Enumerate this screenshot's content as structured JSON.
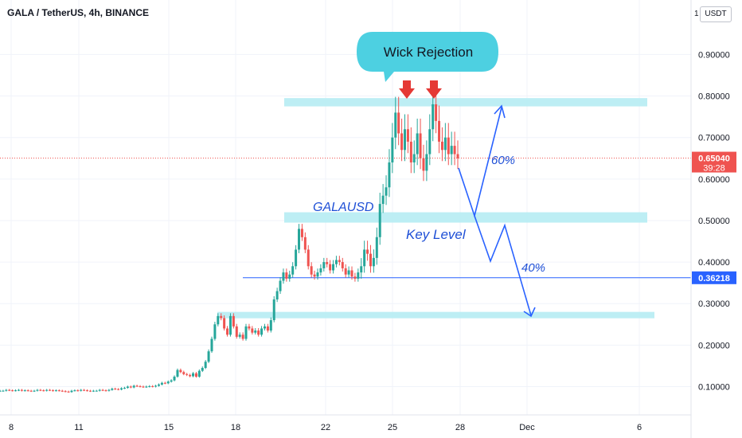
{
  "header": {
    "title": "GALA / TetherUS, 4h, BINANCE",
    "unit_label": "USDT",
    "unit_prefix": "1"
  },
  "price_axis": {
    "ticks": [
      "0.90000",
      "0.80000",
      "0.70000",
      "0.60000",
      "0.50000",
      "0.40000",
      "0.30000",
      "0.20000",
      "0.10000"
    ],
    "current_price": "0.65040",
    "countdown": "39:28",
    "level_price": "0.36218"
  },
  "time_axis": {
    "ticks": [
      "8",
      "11",
      "15",
      "18",
      "22",
      "25",
      "28",
      "Dec",
      "6"
    ]
  },
  "annotations": {
    "callout": "Wick Rejection",
    "symbol_label": "GALAUSD",
    "key_level": "Key Level",
    "up_pct": "60%",
    "down_pct": "40%"
  },
  "colors": {
    "up": "#26a69a",
    "down": "#ef5350",
    "zone": "#b2ebf2",
    "callout": "#4dd0e1",
    "drawing": "#2962ff",
    "arrow_red": "#e53935"
  },
  "chart_data": {
    "type": "candlestick",
    "title": "GALA / TetherUS, 4h, BINANCE",
    "y_unit": "USDT",
    "ylim": [
      0.0,
      0.95
    ],
    "x_ticks": [
      "8",
      "11",
      "15",
      "18",
      "22",
      "25",
      "28",
      "Dec",
      "6"
    ],
    "current_price": 0.6504,
    "zones": [
      {
        "low": 0.775,
        "high": 0.795
      },
      {
        "low": 0.495,
        "high": 0.52
      },
      {
        "low": 0.268,
        "high": 0.28
      }
    ],
    "horizontal_line": 0.36218,
    "close_series": [
      0.09,
      0.09,
      0.092,
      0.091,
      0.09,
      0.091,
      0.092,
      0.09,
      0.091,
      0.09,
      0.089,
      0.09,
      0.092,
      0.091,
      0.09,
      0.092,
      0.091,
      0.09,
      0.091,
      0.09,
      0.089,
      0.088,
      0.087,
      0.09,
      0.091,
      0.09,
      0.092,
      0.091,
      0.09,
      0.089,
      0.09,
      0.09,
      0.092,
      0.091,
      0.09,
      0.092,
      0.095,
      0.094,
      0.093,
      0.096,
      0.097,
      0.1,
      0.098,
      0.102,
      0.101,
      0.1,
      0.099,
      0.1,
      0.101,
      0.1,
      0.102,
      0.105,
      0.109,
      0.108,
      0.112,
      0.115,
      0.124,
      0.14,
      0.135,
      0.13,
      0.128,
      0.125,
      0.132,
      0.124,
      0.138,
      0.145,
      0.16,
      0.185,
      0.215,
      0.25,
      0.27,
      0.265,
      0.24,
      0.225,
      0.27,
      0.245,
      0.22,
      0.225,
      0.215,
      0.245,
      0.24,
      0.23,
      0.235,
      0.225,
      0.24,
      0.245,
      0.235,
      0.26,
      0.31,
      0.33,
      0.355,
      0.375,
      0.36,
      0.37,
      0.39,
      0.43,
      0.48,
      0.46,
      0.43,
      0.39,
      0.37,
      0.365,
      0.375,
      0.385,
      0.4,
      0.395,
      0.38,
      0.395,
      0.405,
      0.4,
      0.385,
      0.37,
      0.38,
      0.365,
      0.36,
      0.375,
      0.39,
      0.43,
      0.42,
      0.39,
      0.41,
      0.46,
      0.54,
      0.56,
      0.58,
      0.64,
      0.7,
      0.76,
      0.71,
      0.67,
      0.72,
      0.69,
      0.64,
      0.66,
      0.71,
      0.65,
      0.62,
      0.66,
      0.72,
      0.78,
      0.74,
      0.69,
      0.67,
      0.7,
      0.66,
      0.68,
      0.66,
      0.65
    ],
    "series": [
      {
        "name": "",
        "values": [
          0.09,
          0.09,
          0.092,
          0.091,
          0.09,
          0.091,
          0.092,
          0.09,
          0.091,
          0.09,
          0.089,
          0.09,
          0.092,
          0.091,
          0.09,
          0.092,
          0.091,
          0.09,
          0.091,
          0.09,
          0.089,
          0.088,
          0.087,
          0.09,
          0.091,
          0.09,
          0.092,
          0.091,
          0.09,
          0.089,
          0.09,
          0.09,
          0.092,
          0.091,
          0.09,
          0.092,
          0.095,
          0.094,
          0.093,
          0.096,
          0.097,
          0.1,
          0.098,
          0.102,
          0.101,
          0.1,
          0.099,
          0.1,
          0.101,
          0.1,
          0.102,
          0.105,
          0.109,
          0.108,
          0.112,
          0.115,
          0.124,
          0.14,
          0.135,
          0.13,
          0.128,
          0.125,
          0.132,
          0.124,
          0.138,
          0.145,
          0.16,
          0.185,
          0.215,
          0.25,
          0.27,
          0.265,
          0.24,
          0.225,
          0.27,
          0.245,
          0.22,
          0.225,
          0.215,
          0.245,
          0.24,
          0.23,
          0.235,
          0.225,
          0.24,
          0.245,
          0.235,
          0.26,
          0.31,
          0.33,
          0.355,
          0.375,
          0.36,
          0.37,
          0.39,
          0.43,
          0.48,
          0.46,
          0.43,
          0.39,
          0.37,
          0.365,
          0.375,
          0.385,
          0.4,
          0.395,
          0.38,
          0.395,
          0.405,
          0.4,
          0.385,
          0.37,
          0.38,
          0.365,
          0.36,
          0.375,
          0.39,
          0.43,
          0.42,
          0.39,
          0.41,
          0.46,
          0.54,
          0.56,
          0.58,
          0.64,
          0.7,
          0.76,
          0.71,
          0.67,
          0.72,
          0.69,
          0.64,
          0.66,
          0.71,
          0.65,
          0.62,
          0.66,
          0.72,
          0.78,
          0.74,
          0.69,
          0.67,
          0.7,
          0.66,
          0.68,
          0.66,
          0.65
        ]
      }
    ],
    "projections": [
      {
        "label": "60%",
        "path": [
          0.65,
          0.51,
          0.79
        ]
      },
      {
        "label": "40%",
        "path": [
          0.65,
          0.51,
          0.4,
          0.49,
          0.27
        ]
      }
    ],
    "legend": "none",
    "grid": true
  }
}
